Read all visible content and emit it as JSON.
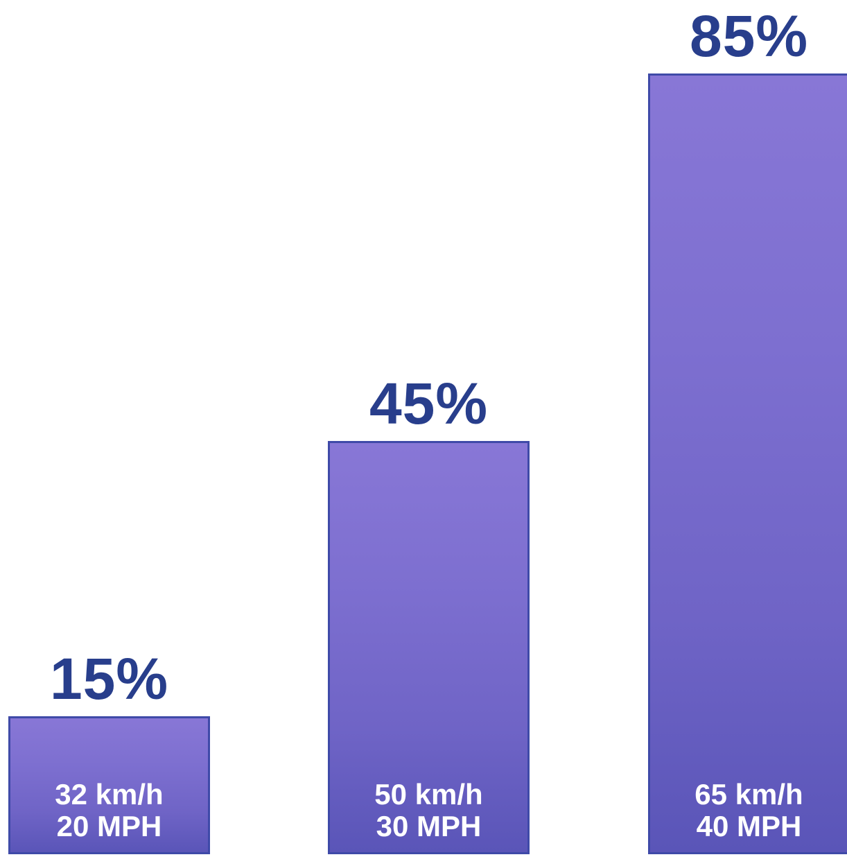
{
  "chart_data": {
    "type": "bar",
    "categories": [
      "32 km/h 20 MPH",
      "50 km/h 30 MPH",
      "65 km/h 40 MPH"
    ],
    "bars": [
      {
        "value": 15,
        "value_label": "15%",
        "speed_kmh": "32 km/h",
        "speed_mph": "20 MPH"
      },
      {
        "value": 45,
        "value_label": "45%",
        "speed_kmh": "50 km/h",
        "speed_mph": "30 MPH"
      },
      {
        "value": 85,
        "value_label": "85%",
        "speed_kmh": "65 km/h",
        "speed_mph": "40 MPH"
      }
    ],
    "values": [
      15,
      45,
      85
    ],
    "title": "",
    "xlabel": "",
    "ylabel": "",
    "ylim": [
      0,
      100
    ],
    "grid": false,
    "legend": "none",
    "colors": {
      "bar_fill_top": "#8877d6",
      "bar_fill_bottom": "#5a55b8",
      "bar_border": "#3f4aa8",
      "value_text": "#283e8c",
      "bar_text": "#ffffff"
    }
  }
}
